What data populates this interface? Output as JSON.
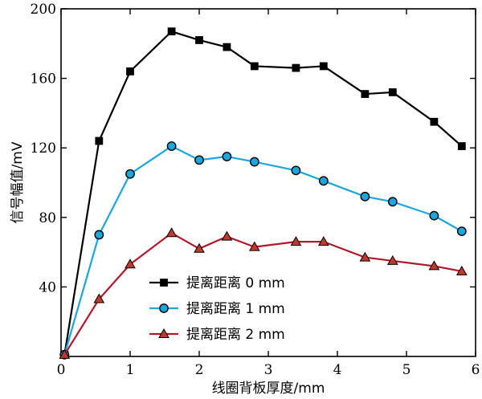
{
  "chart_data": {
    "type": "line",
    "title": "",
    "xlabel": "线圈背板厚度/mm",
    "ylabel": "信号幅值/mV",
    "xlim": [
      0,
      6
    ],
    "ylim": [
      0,
      200
    ],
    "xticks": [
      0,
      1,
      2,
      3,
      4,
      5,
      6
    ],
    "yticks": [
      40,
      80,
      120,
      160,
      200
    ],
    "grid": false,
    "legend_position": "lower-left",
    "series": [
      {
        "name": "提离距离 0 mm",
        "color": "#000000",
        "marker": "square",
        "marker_fill": "#000000",
        "x": [
          0.05,
          0.55,
          1.0,
          1.6,
          2.0,
          2.4,
          2.8,
          3.4,
          3.8,
          4.4,
          4.8,
          5.4,
          5.8
        ],
        "y": [
          1,
          124,
          164,
          187,
          182,
          178,
          167,
          166,
          167,
          151,
          152,
          135,
          121
        ]
      },
      {
        "name": "提离距离 1 mm",
        "color": "#1aa7de",
        "marker": "circle",
        "marker_fill": "#1aa7de",
        "x": [
          0.05,
          0.55,
          1.0,
          1.6,
          2.0,
          2.4,
          2.8,
          3.4,
          3.8,
          4.4,
          4.8,
          5.4,
          5.8
        ],
        "y": [
          1,
          70,
          105,
          121,
          113,
          115,
          112,
          107,
          101,
          92,
          89,
          81,
          72
        ]
      },
      {
        "name": "提离距离 2 mm",
        "color": "#b2182b",
        "marker": "triangle",
        "marker_fill": "#c0392b",
        "x": [
          0.05,
          0.55,
          1.0,
          1.6,
          2.0,
          2.4,
          2.8,
          3.4,
          3.8,
          4.4,
          4.8,
          5.4,
          5.8
        ],
        "y": [
          1,
          33,
          53,
          71,
          62,
          69,
          63,
          66,
          66,
          57,
          55,
          52,
          49
        ]
      }
    ]
  }
}
